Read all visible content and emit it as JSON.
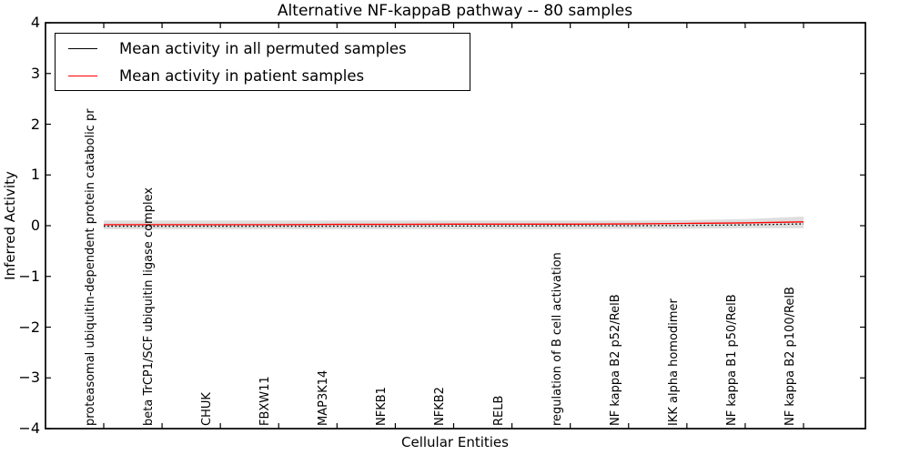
{
  "chart_data": {
    "type": "line",
    "title": "Alternative NF-kappaB pathway -- 80 samples",
    "xlabel": "Cellular Entities",
    "ylabel": "Inferred Activity",
    "ylim": [
      -4,
      4
    ],
    "grid": false,
    "legend_position": "upper left",
    "yticks": [
      4,
      3,
      2,
      1,
      0,
      -1,
      -2,
      -3,
      -4
    ],
    "ytick_labels": [
      "4",
      "3",
      "2",
      "1",
      "0",
      "−1",
      "−2",
      "−3",
      "−4"
    ],
    "categories": [
      "proteasomal ubiquitin-dependent protein catabolic pr",
      "beta TrCP1/SCF ubiquitin ligase complex",
      "CHUK",
      "FBXW11",
      "MAP3K14",
      "NFKB1",
      "NFKB2",
      "RELB",
      "regulation of B cell activation",
      "NF kappa B2 p52/RelB",
      "IKK alpha homodimer",
      "NF kappa B1 p50/RelB",
      "NF kappa B2 p100/RelB"
    ],
    "series": [
      {
        "name": "Mean activity in all permuted samples",
        "color": "#000000",
        "style": "dotted",
        "values": [
          -0.01,
          -0.01,
          -0.01,
          -0.01,
          -0.01,
          -0.01,
          -0.005,
          -0.005,
          0.0,
          0.0,
          0.005,
          0.015,
          0.035
        ]
      },
      {
        "name": "Mean activity in patient samples",
        "color": "#ff0000",
        "style": "solid",
        "values": [
          0.02,
          0.02,
          0.02,
          0.02,
          0.025,
          0.025,
          0.03,
          0.03,
          0.03,
          0.035,
          0.045,
          0.055,
          0.075
        ]
      }
    ],
    "uncertainty_band": {
      "color": "#dedede",
      "upper": [
        0.1,
        0.1,
        0.1,
        0.1,
        0.1,
        0.1,
        0.1,
        0.1,
        0.1,
        0.1,
        0.11,
        0.13,
        0.18
      ],
      "lower": [
        -0.07,
        -0.07,
        -0.07,
        -0.07,
        -0.07,
        -0.07,
        -0.07,
        -0.07,
        -0.07,
        -0.06,
        -0.06,
        -0.05,
        -0.05
      ]
    }
  }
}
